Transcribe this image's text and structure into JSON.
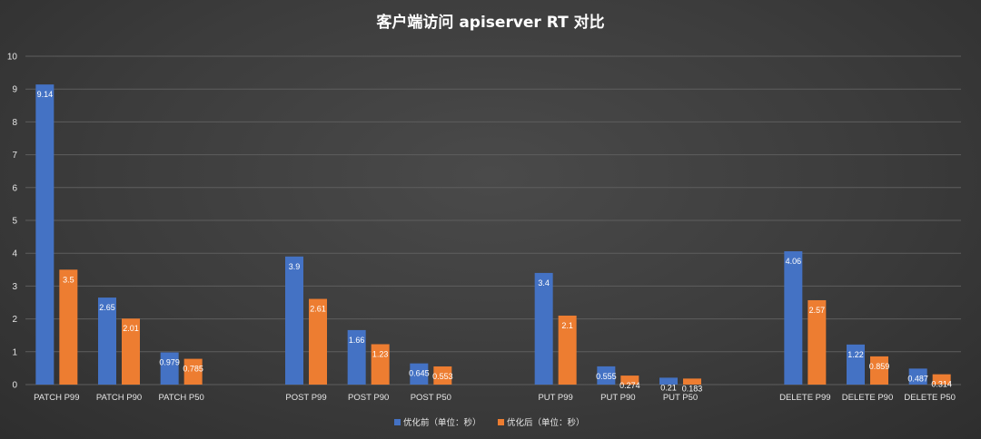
{
  "chart_data": {
    "type": "bar",
    "title": "客户端访问 apiserver RT 对比",
    "xlabel": "",
    "ylabel": "",
    "ylim": [
      0,
      10
    ],
    "yticks": [
      0,
      1,
      2,
      3,
      4,
      5,
      6,
      7,
      8,
      9,
      10
    ],
    "grid": true,
    "legend_position": "bottom",
    "colors": {
      "before": "#4472c4",
      "after": "#ed7d31",
      "grid": "#5e5e5e"
    },
    "groups": [
      {
        "categories": [
          "PATCH P99",
          "PATCH P90",
          "PATCH P50"
        ]
      },
      {
        "categories": [
          "POST P99",
          "POST P90",
          "POST P50"
        ]
      },
      {
        "categories": [
          "PUT P99",
          "PUT P90",
          "PUT P50"
        ]
      },
      {
        "categories": [
          "DELETE P99",
          "DELETE P90",
          "DELETE P50"
        ]
      }
    ],
    "categories": [
      "PATCH P99",
      "PATCH P90",
      "PATCH P50",
      "POST P99",
      "POST P90",
      "POST P50",
      "PUT P99",
      "PUT P90",
      "PUT P50",
      "DELETE P99",
      "DELETE P90",
      "DELETE P50"
    ],
    "series": [
      {
        "name": "优化前（单位：秒）",
        "key": "before",
        "values": [
          9.14,
          2.65,
          0.979,
          3.9,
          1.66,
          0.645,
          3.4,
          0.555,
          0.21,
          4.06,
          1.22,
          0.487
        ]
      },
      {
        "name": "优化后（单位：秒）",
        "key": "after",
        "values": [
          3.5,
          2.01,
          0.785,
          2.61,
          1.23,
          0.553,
          2.1,
          0.274,
          0.183,
          2.57,
          0.859,
          0.314
        ]
      }
    ]
  }
}
